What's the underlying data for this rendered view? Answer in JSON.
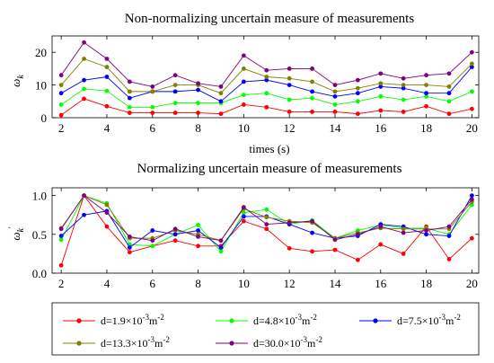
{
  "chart_data": [
    {
      "type": "line",
      "title": "Non-normalizing uncertain measure of measurements",
      "xlabel": "times (s)",
      "ylabel": "ω",
      "ylabel_sub": "k",
      "xlim": [
        1.6,
        20.3
      ],
      "ylim": [
        0,
        25
      ],
      "xticks": [
        2,
        4,
        6,
        8,
        10,
        12,
        14,
        16,
        18,
        20
      ],
      "yticks": [
        0,
        10,
        20
      ],
      "grid": false,
      "x": [
        2,
        3,
        4,
        5,
        6,
        7,
        8,
        9,
        10,
        11,
        12,
        13,
        14,
        15,
        16,
        17,
        18,
        19,
        20
      ],
      "series": [
        {
          "name": "d=1.9×10⁻³m⁻²",
          "color": "#ff0000",
          "values": [
            0.8,
            5.8,
            3.5,
            1.5,
            1.5,
            1.5,
            1.5,
            1.2,
            4.0,
            3.2,
            1.8,
            1.8,
            1.8,
            1.2,
            2.2,
            1.8,
            3.5,
            1.2,
            2.7
          ]
        },
        {
          "name": "d=4.8×10⁻³m⁻²",
          "color": "#00ff00",
          "values": [
            4.0,
            8.8,
            8.2,
            3.2,
            3.2,
            4.5,
            4.5,
            4.5,
            7.0,
            7.5,
            5.5,
            6.0,
            4.0,
            5.0,
            6.5,
            5.5,
            6.5,
            5.0,
            8.0
          ]
        },
        {
          "name": "d=7.5×10⁻³m⁻²",
          "color": "#0000ff",
          "values": [
            7.5,
            11.5,
            12.5,
            6.0,
            8.0,
            8.0,
            8.5,
            5.0,
            11.0,
            11.5,
            10.0,
            8.0,
            6.5,
            7.5,
            9.5,
            9.0,
            7.5,
            7.5,
            15.5
          ]
        },
        {
          "name": "d=13.3×10⁻³m⁻²",
          "color": "#808000",
          "values": [
            10.0,
            18.0,
            15.5,
            8.0,
            8.0,
            10.0,
            10.0,
            7.5,
            15.0,
            12.5,
            12.0,
            11.0,
            8.0,
            9.0,
            10.5,
            10.0,
            10.0,
            9.5,
            16.5
          ]
        },
        {
          "name": "d=30.0×10⁻³m⁻²",
          "color": "#800080",
          "values": [
            13.0,
            23.0,
            18.0,
            11.0,
            9.5,
            13.0,
            10.5,
            9.5,
            19.0,
            14.5,
            15.0,
            15.0,
            10.0,
            11.5,
            13.5,
            12.0,
            13.0,
            13.5,
            20.0
          ]
        }
      ]
    },
    {
      "type": "line",
      "title": "Normalizing uncertain measure of measurements",
      "xlabel": "",
      "ylabel": "ω",
      "ylabel_sub": "k",
      "ylabel_sup": "'",
      "xlim": [
        1.6,
        20.3
      ],
      "ylim": [
        0,
        1.1
      ],
      "xticks": [
        2,
        4,
        6,
        8,
        10,
        12,
        14,
        16,
        18,
        20
      ],
      "yticks": [
        0.0,
        0.5,
        1.0
      ],
      "ytick_labels": [
        "0.0",
        "0.5",
        "1.0"
      ],
      "grid": false,
      "x": [
        2,
        3,
        4,
        5,
        6,
        7,
        8,
        9,
        10,
        11,
        12,
        13,
        14,
        15,
        16,
        17,
        18,
        19,
        20
      ],
      "series": [
        {
          "name": "d=1.9×10⁻³m⁻²",
          "color": "#ff0000",
          "values": [
            0.1,
            1.0,
            0.6,
            0.27,
            0.35,
            0.42,
            0.35,
            0.35,
            0.67,
            0.57,
            0.32,
            0.28,
            0.3,
            0.17,
            0.37,
            0.25,
            0.6,
            0.18,
            0.45
          ]
        },
        {
          "name": "d=4.8×10⁻³m⁻²",
          "color": "#00ff00",
          "values": [
            0.43,
            1.0,
            0.9,
            0.37,
            0.35,
            0.5,
            0.62,
            0.28,
            0.78,
            0.82,
            0.63,
            0.68,
            0.45,
            0.55,
            0.62,
            0.58,
            0.58,
            0.5,
            0.88
          ]
        },
        {
          "name": "d=7.5×10⁻³m⁻²",
          "color": "#0000ff",
          "values": [
            0.48,
            0.75,
            0.8,
            0.33,
            0.55,
            0.5,
            0.55,
            0.33,
            0.73,
            0.73,
            0.63,
            0.52,
            0.45,
            0.48,
            0.63,
            0.6,
            0.5,
            0.48,
            1.0
          ]
        },
        {
          "name": "d=13.3×10⁻³m⁻²",
          "color": "#808000",
          "values": [
            0.58,
            1.0,
            0.88,
            0.45,
            0.45,
            0.55,
            0.5,
            0.42,
            0.83,
            0.72,
            0.67,
            0.65,
            0.45,
            0.52,
            0.58,
            0.57,
            0.57,
            0.57,
            0.92
          ]
        },
        {
          "name": "d=30.0×10⁻³m⁻²",
          "color": "#800080",
          "values": [
            0.57,
            1.0,
            0.78,
            0.47,
            0.42,
            0.57,
            0.47,
            0.42,
            0.85,
            0.63,
            0.65,
            0.67,
            0.43,
            0.5,
            0.6,
            0.52,
            0.55,
            0.6,
            0.95
          ]
        }
      ]
    }
  ],
  "legend": {
    "placement": "bottom",
    "items": [
      {
        "prefix": "d=1.9×10",
        "exp1": "-3",
        "unit": "m",
        "exp2": "-2",
        "color": "#ff0000"
      },
      {
        "prefix": "d=4.8×10",
        "exp1": "-3",
        "unit": "m",
        "exp2": "-2",
        "color": "#00ff00"
      },
      {
        "prefix": "d=7.5×10",
        "exp1": "-3",
        "unit": "m",
        "exp2": "-2",
        "color": "#0000ff"
      },
      {
        "prefix": "d=13.3×10",
        "exp1": "-3",
        "unit": "m",
        "exp2": "-2",
        "color": "#808000"
      },
      {
        "prefix": "d=30.0×10",
        "exp1": "-3",
        "unit": "m",
        "exp2": "-2",
        "color": "#800080"
      }
    ]
  }
}
